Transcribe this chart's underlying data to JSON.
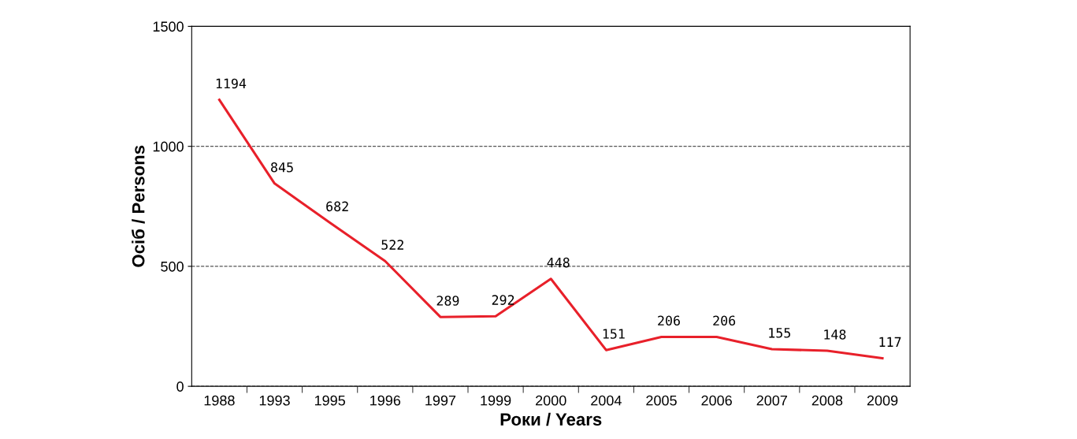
{
  "chart_data": {
    "type": "line",
    "xlabel": "Роки / Years",
    "ylabel": "Осіб / Persons",
    "categories": [
      "1988",
      "1993",
      "1995",
      "1996",
      "1997",
      "1999",
      "2000",
      "2004",
      "2005",
      "2006",
      "2007",
      "2008",
      "2009"
    ],
    "series": [
      {
        "color": "#e8202a",
        "values": [
          1194,
          845,
          682,
          522,
          289,
          292,
          448,
          151,
          206,
          206,
          155,
          148,
          117
        ]
      }
    ],
    "ylim": [
      0,
      1500
    ],
    "yticks": [
      0,
      500,
      1000,
      1500
    ],
    "grid": "y",
    "data_labels": true,
    "marker": "none",
    "line_style": "solid"
  }
}
